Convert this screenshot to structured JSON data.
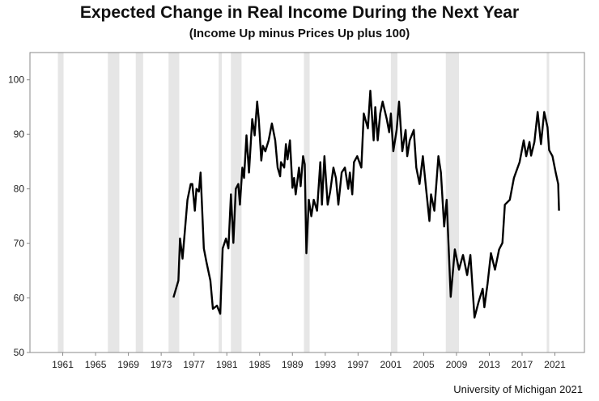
{
  "chart_data": {
    "type": "line",
    "title": "Expected Change in Real Income During the Next Year",
    "subtitle": "(Income Up minus Prices Up plus 100)",
    "source": "University of Michigan 2021",
    "xlabel": "",
    "ylabel": "",
    "xlim": [
      1957,
      2024.6
    ],
    "ylim": [
      50,
      105
    ],
    "yticks": [
      50,
      60,
      70,
      80,
      90,
      100
    ],
    "xticks": [
      1961,
      1965,
      1969,
      1973,
      1977,
      1981,
      1985,
      1989,
      1993,
      1997,
      2001,
      2005,
      2009,
      2013,
      2017,
      2021
    ],
    "grid": false,
    "colors": {
      "line": "#000000",
      "recession": "#e6e6e6",
      "axis": "#888888"
    },
    "recessions": [
      [
        1960.4,
        1961.1
      ],
      [
        1966.5,
        1967.9
      ],
      [
        1969.9,
        1970.8
      ],
      [
        1973.9,
        1975.2
      ],
      [
        1980.0,
        1980.4
      ],
      [
        1981.5,
        1982.8
      ],
      [
        1990.4,
        1991.1
      ],
      [
        2001.0,
        2001.8
      ],
      [
        2007.7,
        2009.3
      ],
      [
        2020.0,
        2020.3
      ]
    ],
    "series": [
      {
        "name": "Expected Change in Real Income",
        "x": [
          1974.5,
          1975.1,
          1975.3,
          1975.6,
          1976.2,
          1976.6,
          1976.8,
          1977.1,
          1977.3,
          1977.6,
          1977.8,
          1978.2,
          1978.5,
          1979.0,
          1979.3,
          1979.8,
          1980.2,
          1980.5,
          1980.9,
          1981.2,
          1981.5,
          1981.8,
          1982.1,
          1982.4,
          1982.6,
          1982.9,
          1983.1,
          1983.4,
          1983.7,
          1984.1,
          1984.4,
          1984.7,
          1984.9,
          1985.2,
          1985.4,
          1985.7,
          1986.1,
          1986.5,
          1986.9,
          1987.2,
          1987.5,
          1987.6,
          1988.0,
          1988.2,
          1988.4,
          1988.7,
          1989.0,
          1989.2,
          1989.4,
          1989.8,
          1990.0,
          1990.3,
          1990.5,
          1990.7,
          1991.0,
          1991.3,
          1991.6,
          1992.0,
          1992.4,
          1992.6,
          1992.9,
          1993.3,
          1993.6,
          1994.0,
          1994.3,
          1994.6,
          1995.0,
          1995.4,
          1995.8,
          1996.0,
          1996.3,
          1996.5,
          1996.9,
          1997.4,
          1997.7,
          1998.2,
          1998.5,
          1998.9,
          1999.1,
          1999.4,
          1999.7,
          2000.0,
          2000.5,
          2000.8,
          2001.0,
          2001.3,
          2001.7,
          2002.0,
          2002.4,
          2002.8,
          2003.0,
          2003.3,
          2003.8,
          2004.1,
          2004.5,
          2004.9,
          2005.3,
          2005.7,
          2005.9,
          2006.3,
          2006.8,
          2007.1,
          2007.5,
          2007.8,
          2008.3,
          2008.8,
          2009.3,
          2009.8,
          2010.3,
          2010.7,
          2011.2,
          2011.7,
          2012.2,
          2012.4,
          2012.8,
          2013.2,
          2013.7,
          2014.2,
          2014.6,
          2014.9,
          2015.5,
          2016.0,
          2016.7,
          2017.2,
          2017.5,
          2017.9,
          2018.1,
          2018.5,
          2018.9,
          2019.3,
          2019.7,
          2020.1,
          2020.3,
          2020.7,
          2021.1,
          2021.4,
          2021.5
        ],
        "y": [
          60.1,
          63.2,
          70.9,
          67.2,
          78.0,
          80.9,
          80.9,
          76.0,
          80.0,
          79.5,
          83.0,
          69.1,
          66.7,
          63.2,
          58.0,
          58.6,
          57.1,
          69.1,
          70.9,
          69.1,
          79.0,
          70.1,
          80.0,
          80.9,
          77.1,
          83.9,
          82.0,
          89.8,
          83.0,
          92.8,
          89.8,
          96.0,
          92.8,
          85.2,
          87.9,
          86.9,
          88.9,
          92.0,
          88.9,
          83.9,
          82.3,
          84.9,
          83.9,
          88.2,
          85.4,
          88.9,
          80.2,
          82.0,
          79.0,
          83.9,
          80.5,
          86.0,
          84.5,
          68.2,
          78.0,
          75.0,
          78.0,
          76.0,
          84.9,
          77.1,
          86.0,
          77.1,
          79.5,
          83.9,
          82.0,
          77.1,
          83.0,
          83.9,
          80.0,
          83.0,
          79.0,
          84.9,
          86.0,
          83.9,
          93.8,
          91.1,
          98.0,
          88.9,
          95.0,
          88.9,
          93.8,
          96.0,
          92.8,
          90.4,
          93.8,
          86.9,
          90.8,
          96.0,
          86.9,
          90.8,
          86.0,
          88.9,
          90.8,
          83.9,
          80.9,
          86.0,
          80.0,
          74.1,
          79.0,
          76.0,
          86.0,
          83.0,
          73.1,
          78.0,
          60.2,
          68.9,
          65.2,
          67.9,
          64.2,
          67.9,
          56.4,
          59.3,
          61.7,
          58.3,
          62.7,
          68.2,
          65.2,
          68.9,
          70.1,
          77.1,
          78.0,
          82.0,
          84.9,
          88.9,
          86.0,
          88.6,
          86.1,
          88.6,
          94.1,
          88.2,
          94.1,
          91.3,
          87.1,
          86.0,
          83.0,
          80.9,
          76.0
        ]
      }
    ]
  }
}
